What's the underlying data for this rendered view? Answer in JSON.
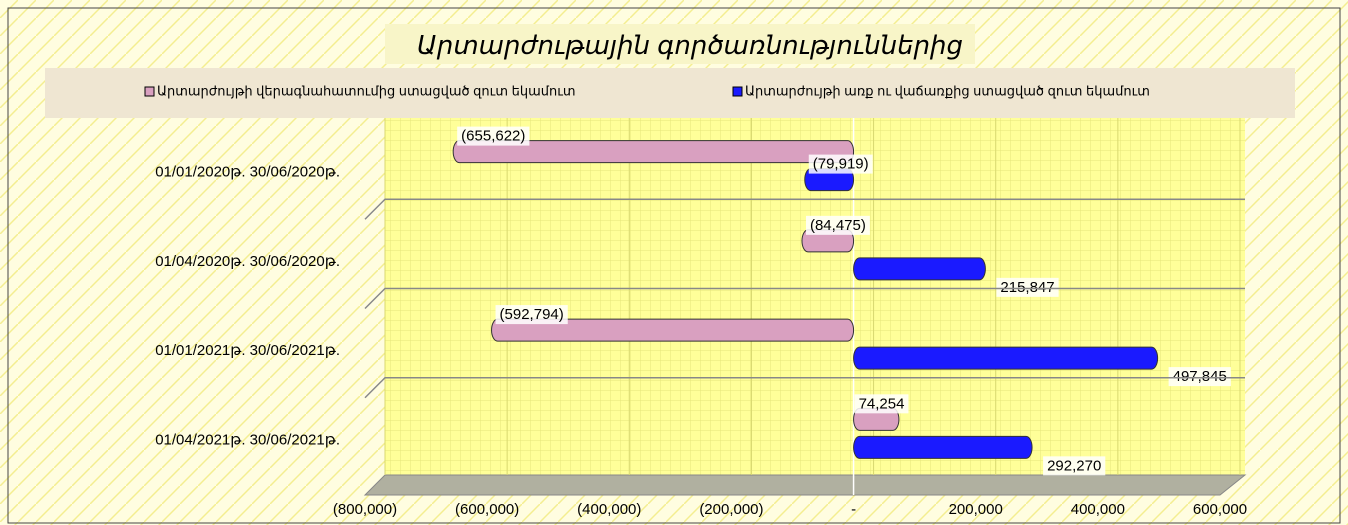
{
  "chart_data": {
    "type": "barh",
    "title": "Արտարժութային գործառնություններից",
    "categories": [
      "01/01/2020թ.  30/06/2020թ.",
      "01/04/2020թ.  30/06/2020թ.",
      "01/01/2021թ.  30/06/2021թ.",
      "01/04/2021թ.  30/06/2021թ."
    ],
    "series": [
      {
        "name": "Արտարժույթի վերագնահատումից ստացված զուտ եկամուտ",
        "color": "#d9a0c0",
        "values": [
          -655622,
          -84475,
          -592794,
          74254
        ],
        "value_labels": [
          "(655,622)",
          "(84,475)",
          "(592,794)",
          "74,254"
        ]
      },
      {
        "name": "Արտարժույթի առք ու վաճառքից ստացված զուտ եկամուտ",
        "color": "#1a1aff",
        "values": [
          -79919,
          215847,
          497845,
          292270
        ],
        "value_labels": [
          "(79,919)",
          "215,847",
          "497,845",
          "292,270"
        ]
      }
    ],
    "xlim": [
      -800000,
      600000
    ],
    "xticks": [
      {
        "value": -800000,
        "label": "(800,000)"
      },
      {
        "value": -600000,
        "label": "(600,000)"
      },
      {
        "value": -400000,
        "label": "(400,000)"
      },
      {
        "value": -200000,
        "label": "(200,000)"
      },
      {
        "value": 0,
        "label": "-"
      },
      {
        "value": 200000,
        "label": "200,000"
      },
      {
        "value": 400000,
        "label": "400,000"
      },
      {
        "value": 600000,
        "label": "600,000"
      }
    ],
    "grid": true
  }
}
